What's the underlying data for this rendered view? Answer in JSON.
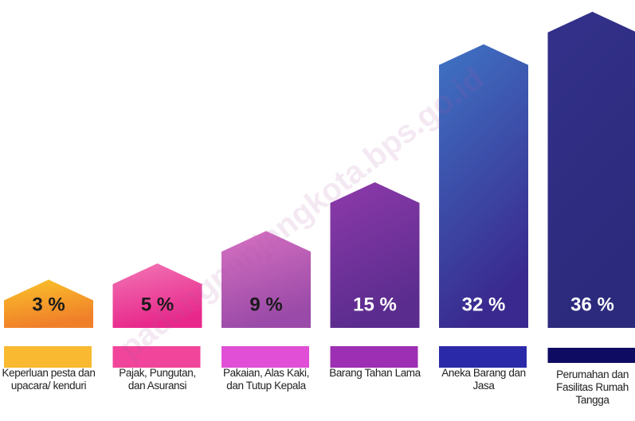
{
  "chart_data": {
    "type": "house-bar",
    "categories": [
      "Keperluan pesta dan upacara/ kenduri",
      "Pajak, Pungutan, dan Asuransi",
      "Pakaian, Alas Kaki, dan Tutup Kepala",
      "Barang Tahan Lama",
      "Aneka Barang dan Jasa",
      "Perumahan dan Fasilitas Rumah Tangga"
    ],
    "values": [
      3,
      5,
      9,
      15,
      32,
      36
    ],
    "value_labels": [
      "3 %",
      "5 %",
      "9 %",
      "15 %",
      "32 %",
      "36 %"
    ],
    "colors": [
      "#f9b930",
      "#f0459a",
      "#e04fd6",
      "#9c2fb3",
      "#2a2aa8",
      "#0e0b63"
    ],
    "gradients": [
      [
        "#fbc42a",
        "#f07f2a"
      ],
      [
        "#f276b6",
        "#e8288b"
      ],
      [
        "#d872c2",
        "#9a4aa8"
      ],
      [
        "#8e3aaa",
        "#5a2c8e"
      ],
      [
        "#3f74c4",
        "#3a2a8f"
      ],
      [
        "#33318a",
        "#2b2a7c"
      ]
    ],
    "label_colors": [
      "#1a1a1a",
      "#1a1a1a",
      "#1a1a1a",
      "#ffffff",
      "#ffffff",
      "#ffffff"
    ],
    "watermark": "padangpanjangkota.bps.go.id"
  }
}
